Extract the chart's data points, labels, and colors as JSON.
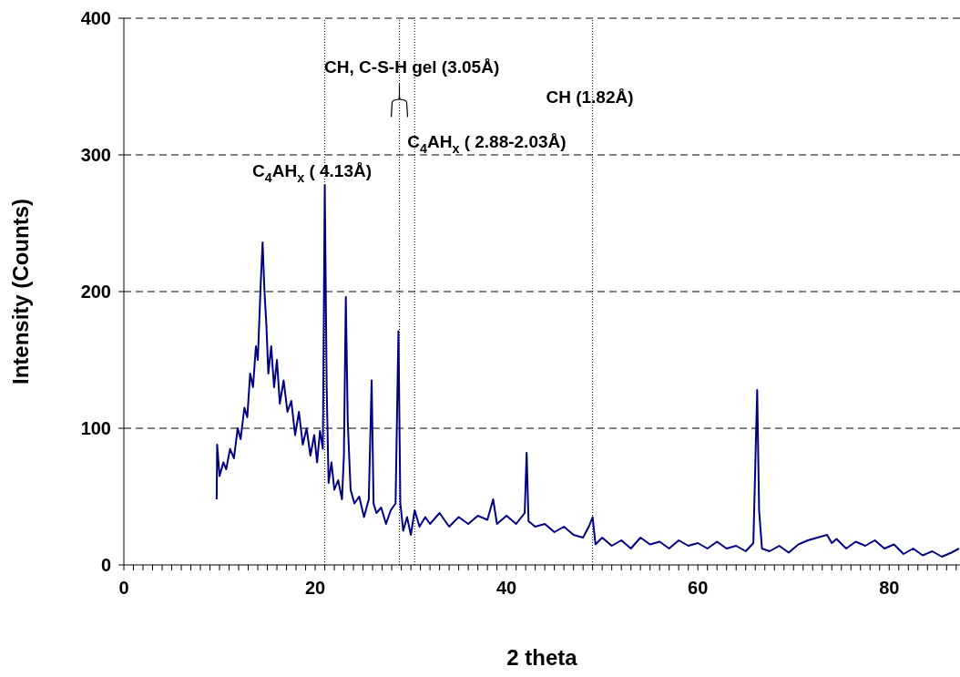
{
  "chart_data": {
    "type": "line",
    "xlabel": "2 theta",
    "ylabel": "Intensity (Counts)",
    "xlim": [
      0,
      87.4
    ],
    "xticks": [
      0,
      {
        "value": 1,
        "label": null
      },
      {
        "value": 2,
        "label": null
      },
      {
        "value": 3,
        "label": null
      },
      {
        "value": 4,
        "label": null
      },
      {
        "value": 5,
        "label": null
      },
      {
        "value": 6,
        "label": null
      },
      {
        "value": 7,
        "label": null
      },
      {
        "value": 8,
        "label": null
      },
      {
        "value": 9,
        "label": null
      },
      {
        "value": 10,
        "label": null
      },
      {
        "value": 11,
        "label": null
      },
      {
        "value": 12,
        "label": null
      },
      {
        "value": 13,
        "label": null
      },
      {
        "value": 14,
        "label": null
      },
      {
        "value": 15,
        "label": null
      },
      {
        "value": 16,
        "label": null
      },
      {
        "value": 17,
        "label": null
      },
      {
        "value": 18,
        "label": null
      },
      {
        "value": 19,
        "label": null
      },
      20,
      {
        "value": 21,
        "label": null
      },
      {
        "value": 22,
        "label": null
      },
      {
        "value": 23,
        "label": null
      },
      {
        "value": 24,
        "label": null
      },
      {
        "value": 25,
        "label": null
      },
      {
        "value": 26,
        "label": null
      },
      {
        "value": 27,
        "label": null
      },
      {
        "value": 28,
        "label": null
      },
      {
        "value": 29,
        "label": null
      },
      {
        "value": 30,
        "label": null
      },
      {
        "value": 31,
        "label": null
      },
      {
        "value": 32,
        "label": null
      },
      {
        "value": 33,
        "label": null
      },
      {
        "value": 34,
        "label": null
      },
      {
        "value": 35,
        "label": null
      },
      {
        "value": 36,
        "label": null
      },
      {
        "value": 37,
        "label": null
      },
      {
        "value": 38,
        "label": null
      },
      {
        "value": 39,
        "label": null
      },
      40,
      {
        "value": 41,
        "label": null
      },
      {
        "value": 42,
        "label": null
      },
      {
        "value": 43,
        "label": null
      },
      {
        "value": 44,
        "label": null
      },
      {
        "value": 45,
        "label": null
      },
      {
        "value": 46,
        "label": null
      },
      {
        "value": 47,
        "label": null
      },
      {
        "value": 48,
        "label": null
      },
      {
        "value": 49,
        "label": null
      },
      {
        "value": 50,
        "label": null
      },
      {
        "value": 51,
        "label": null
      },
      {
        "value": 52,
        "label": null
      },
      {
        "value": 53,
        "label": null
      },
      {
        "value": 54,
        "label": null
      },
      {
        "value": 55,
        "label": null
      },
      {
        "value": 56,
        "label": null
      },
      {
        "value": 57,
        "label": null
      },
      {
        "value": 58,
        "label": null
      },
      {
        "value": 59,
        "label": null
      },
      60,
      {
        "value": 61,
        "label": null
      },
      {
        "value": 62,
        "label": null
      },
      {
        "value": 63,
        "label": null
      },
      {
        "value": 64,
        "label": null
      },
      {
        "value": 65,
        "label": null
      },
      {
        "value": 66,
        "label": null
      },
      {
        "value": 67,
        "label": null
      },
      {
        "value": 68,
        "label": null
      },
      {
        "value": 69,
        "label": null
      },
      {
        "value": 70,
        "label": null
      },
      {
        "value": 71,
        "label": null
      },
      {
        "value": 72,
        "label": null
      },
      {
        "value": 73,
        "label": null
      },
      {
        "value": 74,
        "label": null
      },
      {
        "value": 75,
        "label": null
      },
      {
        "value": 76,
        "label": null
      },
      {
        "value": 77,
        "label": null
      },
      {
        "value": 78,
        "label": null
      },
      {
        "value": 79,
        "label": null
      },
      80,
      {
        "value": 81,
        "label": null
      },
      {
        "value": 82,
        "label": null
      },
      {
        "value": 83,
        "label": null
      },
      {
        "value": 84,
        "label": null
      },
      {
        "value": 85,
        "label": null
      },
      {
        "value": 86,
        "label": null
      },
      {
        "value": 87,
        "label": null
      }
    ],
    "ylim": [
      0,
      400
    ],
    "yticks": [
      0,
      100,
      200,
      300,
      400
    ],
    "grid": "y",
    "legend": false,
    "marker": "none",
    "line_style": "solid",
    "series": [
      {
        "color": "#000080",
        "x": [
          9.7,
          9.75,
          10.0,
          10.4,
          10.7,
          11.1,
          11.5,
          11.9,
          12.2,
          12.6,
          12.9,
          13.2,
          13.5,
          13.8,
          14.0,
          14.3,
          14.5,
          14.7,
          14.9,
          15.1,
          15.4,
          15.7,
          16.0,
          16.3,
          16.7,
          17.1,
          17.5,
          17.9,
          18.3,
          18.7,
          19.1,
          19.5,
          19.9,
          20.2,
          20.5,
          20.8,
          21.0,
          21.2,
          21.4,
          21.7,
          22.0,
          22.4,
          22.8,
          23.0,
          23.2,
          23.4,
          23.7,
          24.1,
          24.6,
          25.1,
          25.6,
          25.9,
          26.1,
          26.4,
          26.9,
          27.4,
          27.9,
          28.4,
          28.7,
          28.9,
          29.2,
          29.6,
          30.0,
          30.4,
          30.9,
          31.5,
          32,
          33,
          34,
          35,
          36,
          37,
          38,
          38.6,
          39,
          40,
          41,
          41.9,
          42.1,
          42.3,
          43,
          44,
          45,
          46,
          47,
          48,
          48.6,
          49.0,
          49.3,
          50,
          51,
          52,
          53,
          54,
          55,
          56,
          57,
          58,
          59,
          60,
          61,
          62,
          63,
          64,
          65,
          65.8,
          66.2,
          66.4,
          66.7,
          67.5,
          68.5,
          69.5,
          70.5,
          71.5,
          72.5,
          73.5,
          74,
          74.5,
          75.5,
          76.5,
          77.5,
          78.5,
          79.5,
          80.5,
          81.5,
          82.5,
          83.5,
          84.5,
          85.5,
          86.5,
          87.3
        ],
        "values": [
          48,
          88,
          65,
          75,
          70,
          85,
          78,
          100,
          92,
          115,
          108,
          140,
          130,
          160,
          150,
          205,
          236,
          200,
          175,
          140,
          160,
          130,
          150,
          118,
          135,
          112,
          120,
          95,
          112,
          88,
          100,
          80,
          95,
          75,
          98,
          85,
          278,
          130,
          60,
          75,
          55,
          62,
          48,
          80,
          196,
          105,
          55,
          45,
          50,
          35,
          48,
          135,
          45,
          38,
          42,
          30,
          40,
          45,
          171,
          45,
          25,
          35,
          22,
          40,
          28,
          35,
          30,
          38,
          28,
          35,
          30,
          36,
          33,
          48,
          30,
          36,
          30,
          38,
          82,
          32,
          28,
          30,
          24,
          28,
          22,
          20,
          28,
          35,
          15,
          20,
          14,
          18,
          12,
          20,
          15,
          17,
          12,
          18,
          14,
          16,
          12,
          17,
          12,
          14,
          10,
          16,
          128,
          40,
          12,
          10,
          14,
          9,
          15,
          18,
          20,
          22,
          16,
          19,
          12,
          17,
          14,
          18,
          12,
          15,
          8,
          12,
          7,
          10,
          6,
          9,
          12
        ]
      }
    ],
    "ref_lines": [
      {
        "axis": "x",
        "value": 21.0,
        "line_style": "dotted",
        "color": "#000000"
      },
      {
        "axis": "x",
        "value": 28.8,
        "line_style": "dotted",
        "color": "#000000"
      },
      {
        "axis": "x",
        "value": 30.4,
        "line_style": "dotted",
        "color": "#000000"
      },
      {
        "axis": "x",
        "value": 49.0,
        "line_style": "dotted",
        "color": "#000000"
      }
    ],
    "annotations": [
      "C$_{4}$AH$_{x}$ ( 4.13Å)",
      {
        "text": "CH, C-S-H gel (3.05Å)",
        "x": 30.1,
        "y": 365
      },
      "C$_{4}$AH$_{x}$ ( 2.88-2.03Å)",
      {
        "text": "CH (1.82Å)",
        "x": 48.7,
        "y": 343
      }
    ]
  }
}
